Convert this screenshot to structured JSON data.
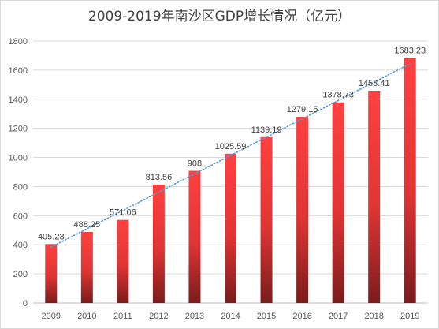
{
  "chart_data": {
    "type": "bar",
    "title": "2009-2019年南沙区GDP增长情况（亿元）",
    "categories": [
      "2009",
      "2010",
      "2011",
      "2012",
      "2013",
      "2014",
      "2015",
      "2016",
      "2017",
      "2018",
      "2019"
    ],
    "values": [
      405.23,
      488.25,
      571.06,
      813.56,
      908,
      1025.59,
      1139.19,
      1279.15,
      1378.73,
      1458.41,
      1683.23
    ],
    "value_labels": [
      "405.23",
      "488.25",
      "571.06",
      "813.56",
      "908",
      "1025.59",
      "1139.19",
      "1279.15",
      "1378.73",
      "1458.41",
      "1683.23"
    ],
    "yticks": [
      0,
      200,
      400,
      600,
      800,
      1000,
      1200,
      1400,
      1600,
      1800
    ],
    "ylim": [
      0,
      1800
    ],
    "xlabel": "",
    "ylabel": "",
    "grid": true,
    "legend": "none",
    "trendline": "linear, dotted",
    "colors": {
      "bar_top": "#ff4040",
      "bar_bottom": "#7a1c1c",
      "trendline": "#5b9bd5",
      "grid": "#d9d9d9",
      "axis": "#bfbfbf"
    }
  }
}
